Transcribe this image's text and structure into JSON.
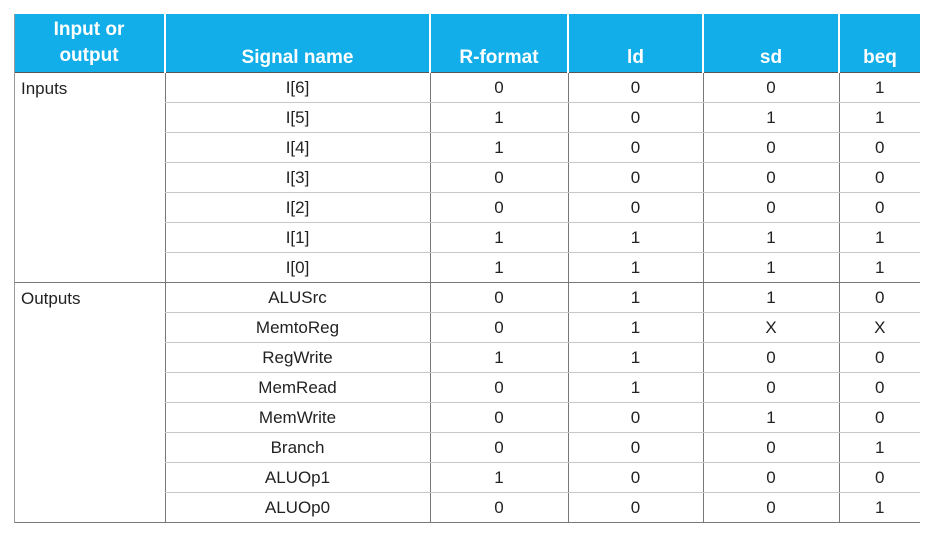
{
  "columns": [
    "Input or output",
    "Signal name",
    "R-format",
    "ld",
    "sd",
    "beq"
  ],
  "header": {
    "col0_line1": "Input or",
    "col0_line2": "output",
    "col1": "Signal name",
    "col2": "R-format",
    "col3": "ld",
    "col4": "sd",
    "col5": "beq"
  },
  "groups": [
    {
      "label": "Inputs",
      "rows": [
        {
          "signal": "I[6]",
          "values": [
            "0",
            "0",
            "0",
            "1"
          ]
        },
        {
          "signal": "I[5]",
          "values": [
            "1",
            "0",
            "1",
            "1"
          ]
        },
        {
          "signal": "I[4]",
          "values": [
            "1",
            "0",
            "0",
            "0"
          ]
        },
        {
          "signal": "I[3]",
          "values": [
            "0",
            "0",
            "0",
            "0"
          ]
        },
        {
          "signal": "I[2]",
          "values": [
            "0",
            "0",
            "0",
            "0"
          ]
        },
        {
          "signal": "I[1]",
          "values": [
            "1",
            "1",
            "1",
            "1"
          ]
        },
        {
          "signal": "I[0]",
          "values": [
            "1",
            "1",
            "1",
            "1"
          ]
        }
      ]
    },
    {
      "label": "Outputs",
      "rows": [
        {
          "signal": "ALUSrc",
          "values": [
            "0",
            "1",
            "1",
            "0"
          ]
        },
        {
          "signal": "MemtoReg",
          "values": [
            "0",
            "1",
            "X",
            "X"
          ]
        },
        {
          "signal": "RegWrite",
          "values": [
            "1",
            "1",
            "0",
            "0"
          ]
        },
        {
          "signal": "MemRead",
          "values": [
            "0",
            "1",
            "0",
            "0"
          ]
        },
        {
          "signal": "MemWrite",
          "values": [
            "0",
            "0",
            "1",
            "0"
          ]
        },
        {
          "signal": "Branch",
          "values": [
            "0",
            "0",
            "0",
            "1"
          ]
        },
        {
          "signal": "ALUOp1",
          "values": [
            "1",
            "0",
            "0",
            "0"
          ]
        },
        {
          "signal": "ALUOp0",
          "values": [
            "0",
            "0",
            "0",
            "1"
          ]
        }
      ]
    }
  ],
  "colors": {
    "header_bg": "#12aee9",
    "header_text": "#ffffff"
  }
}
